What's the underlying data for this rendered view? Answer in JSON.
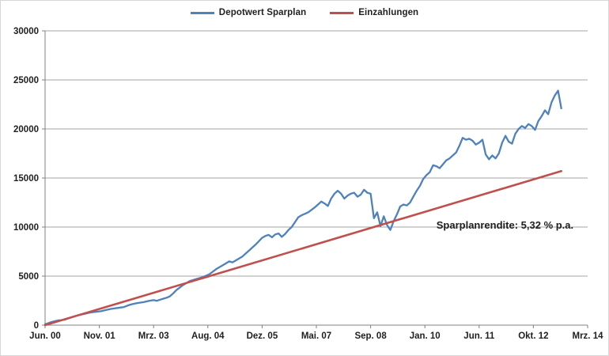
{
  "chart_data": {
    "type": "line",
    "title": "",
    "legend_position": "top-center",
    "grid": "horizontal",
    "x_axis": {
      "label": "",
      "tick_labels": [
        "Jun. 00",
        "Nov. 01",
        "Mrz. 03",
        "Aug. 04",
        "Dez. 05",
        "Mai. 07",
        "Sep. 08",
        "Jan. 10",
        "Jun. 11",
        "Okt. 12",
        "Mrz. 14"
      ],
      "unit": "months since Jun 2000",
      "total_months": 165
    },
    "y_axis": {
      "label": "",
      "min": 0,
      "max": 30000,
      "step": 5000,
      "tick_labels": [
        "0",
        "5000",
        "10000",
        "15000",
        "20000",
        "25000",
        "30000"
      ]
    },
    "series": [
      {
        "name": "Depotwert Sparplan",
        "color": "#4F81BD",
        "x_unit": "months-since-Jun-2000",
        "x_step": 1,
        "values": [
          100,
          200,
          320,
          400,
          480,
          520,
          560,
          680,
          800,
          900,
          1000,
          1080,
          1150,
          1230,
          1300,
          1340,
          1380,
          1420,
          1500,
          1580,
          1650,
          1700,
          1750,
          1800,
          1850,
          1980,
          2100,
          2180,
          2250,
          2300,
          2350,
          2430,
          2500,
          2550,
          2480,
          2600,
          2700,
          2800,
          2950,
          3250,
          3600,
          3850,
          4100,
          4300,
          4500,
          4600,
          4700,
          4800,
          4900,
          5050,
          5200,
          5450,
          5700,
          5900,
          6100,
          6300,
          6500,
          6400,
          6600,
          6800,
          7000,
          7300,
          7600,
          7900,
          8200,
          8550,
          8900,
          9100,
          9200,
          8950,
          9250,
          9350,
          9000,
          9300,
          9700,
          10000,
          10500,
          11000,
          11200,
          11350,
          11500,
          11750,
          12000,
          12300,
          12600,
          12400,
          12150,
          12900,
          13400,
          13700,
          13400,
          12900,
          13200,
          13400,
          13500,
          13100,
          13300,
          13800,
          13500,
          13400,
          10900,
          11500,
          10100,
          11100,
          10200,
          9700,
          10600,
          11300,
          12100,
          12300,
          12200,
          12500,
          13100,
          13700,
          14200,
          14900,
          15300,
          15600,
          16300,
          16200,
          16000,
          16400,
          16800,
          17000,
          17300,
          17600,
          18300,
          19100,
          18900,
          19000,
          18800,
          18400,
          18600,
          18900,
          17400,
          16900,
          17300,
          17000,
          17500,
          18600,
          19300,
          18700,
          18500,
          19500,
          20000,
          20300,
          20100,
          20500,
          20300,
          19900,
          20800,
          21300,
          21900,
          21500,
          22700,
          23400,
          23900,
          22100
        ]
      },
      {
        "name": "Einzahlungen",
        "color": "#C0504D",
        "x_unit": "months-since-Jun-2000",
        "shape": "linear",
        "x": [
          0,
          157
        ],
        "values": [
          0,
          15700
        ]
      }
    ],
    "annotations": [
      {
        "text": "Sparplanrendite: 5,32 % p.a.",
        "x_month": 119,
        "y_value": 10800
      }
    ]
  },
  "style_colors": {
    "axis_line": "#808080",
    "gridline": "#a6a6a6",
    "tick_text": "#1f1f1f",
    "background": "#ffffff",
    "frame_border": "#d6d6d6"
  }
}
